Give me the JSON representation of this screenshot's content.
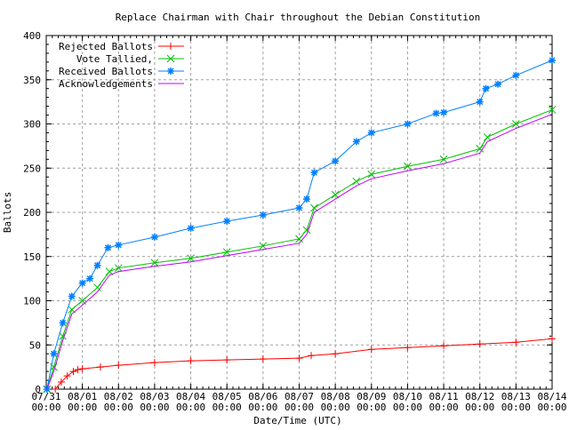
{
  "chart_data": {
    "type": "line",
    "title": "Replace Chairman with Chair throughout the Debian Constitution",
    "xlabel": "Date/Time (UTC)",
    "ylabel": "Ballots",
    "ylim": [
      0,
      400
    ],
    "yticks": [
      0,
      50,
      100,
      150,
      200,
      250,
      300,
      350,
      400
    ],
    "xlim": [
      "07/31 00:00",
      "08/14 00:00"
    ],
    "xticks": [
      "07/31",
      "08/01",
      "08/02",
      "08/03",
      "08/04",
      "08/05",
      "08/06",
      "08/07",
      "08/08",
      "08/09",
      "08/10",
      "08/11",
      "08/12",
      "08/13",
      "08/14"
    ],
    "xtick_time": "00:00",
    "grid": true,
    "legend_position": "top-left",
    "series": [
      {
        "name": "Rejected Ballots",
        "color": "#ff0000",
        "marker": "plus",
        "points": [
          [
            "07/31 06:00",
            0
          ],
          [
            "07/31 10:00",
            8
          ],
          [
            "07/31 14:00",
            15
          ],
          [
            "07/31 18:00",
            20
          ],
          [
            "07/31 21:00",
            22
          ],
          [
            "08/01 00:00",
            23
          ],
          [
            "08/01 12:00",
            25
          ],
          [
            "08/02 00:00",
            27
          ],
          [
            "08/03 00:00",
            30
          ],
          [
            "08/04 00:00",
            32
          ],
          [
            "08/05 00:00",
            33
          ],
          [
            "08/06 00:00",
            34
          ],
          [
            "08/07 00:00",
            35
          ],
          [
            "08/07 08:00",
            38
          ],
          [
            "08/08 00:00",
            40
          ],
          [
            "08/09 00:00",
            45
          ],
          [
            "08/10 00:00",
            47
          ],
          [
            "08/11 00:00",
            49
          ],
          [
            "08/12 00:00",
            51
          ],
          [
            "08/13 00:00",
            53
          ],
          [
            "08/14 00:00",
            57
          ]
        ]
      },
      {
        "name": "Vote Tallied,",
        "color": "#00c000",
        "marker": "cross",
        "points": [
          [
            "07/31 00:30",
            0
          ],
          [
            "07/31 05:00",
            25
          ],
          [
            "07/31 11:00",
            60
          ],
          [
            "07/31 17:00",
            90
          ],
          [
            "08/01 00:00",
            100
          ],
          [
            "08/01 10:00",
            115
          ],
          [
            "08/01 18:00",
            133
          ],
          [
            "08/02 00:00",
            137
          ],
          [
            "08/03 00:00",
            143
          ],
          [
            "08/04 00:00",
            148
          ],
          [
            "08/05 00:00",
            155
          ],
          [
            "08/06 00:00",
            162
          ],
          [
            "08/07 00:00",
            170
          ],
          [
            "08/07 05:00",
            180
          ],
          [
            "08/07 10:00",
            205
          ],
          [
            "08/08 00:00",
            220
          ],
          [
            "08/08 14:00",
            235
          ],
          [
            "08/09 00:00",
            243
          ],
          [
            "08/10 00:00",
            252
          ],
          [
            "08/11 00:00",
            260
          ],
          [
            "08/12 00:00",
            272
          ],
          [
            "08/12 05:00",
            285
          ],
          [
            "08/13 00:00",
            300
          ],
          [
            "08/14 00:00",
            316
          ]
        ]
      },
      {
        "name": "Received Ballots",
        "color": "#0080ff",
        "marker": "star",
        "points": [
          [
            "07/31 00:30",
            0
          ],
          [
            "07/31 05:00",
            40
          ],
          [
            "07/31 11:00",
            75
          ],
          [
            "07/31 17:00",
            105
          ],
          [
            "08/01 00:00",
            120
          ],
          [
            "08/01 05:00",
            125
          ],
          [
            "08/01 10:00",
            140
          ],
          [
            "08/01 17:00",
            160
          ],
          [
            "08/02 00:00",
            163
          ],
          [
            "08/03 00:00",
            172
          ],
          [
            "08/04 00:00",
            182
          ],
          [
            "08/05 00:00",
            190
          ],
          [
            "08/06 00:00",
            197
          ],
          [
            "08/07 00:00",
            205
          ],
          [
            "08/07 05:00",
            215
          ],
          [
            "08/07 10:00",
            245
          ],
          [
            "08/08 00:00",
            258
          ],
          [
            "08/08 14:00",
            280
          ],
          [
            "08/09 00:00",
            290
          ],
          [
            "08/10 00:00",
            300
          ],
          [
            "08/10 19:00",
            312
          ],
          [
            "08/11 00:00",
            313
          ],
          [
            "08/12 00:00",
            325
          ],
          [
            "08/12 04:00",
            340
          ],
          [
            "08/12 12:00",
            345
          ],
          [
            "08/13 00:00",
            355
          ],
          [
            "08/14 00:00",
            372
          ]
        ]
      },
      {
        "name": "Acknowledgements",
        "color": "#c000ff",
        "marker": "none",
        "points": [
          [
            "07/31 00:30",
            0
          ],
          [
            "07/31 05:00",
            20
          ],
          [
            "07/31 11:00",
            55
          ],
          [
            "07/31 17:00",
            85
          ],
          [
            "08/01 00:00",
            95
          ],
          [
            "08/01 10:00",
            110
          ],
          [
            "08/01 18:00",
            129
          ],
          [
            "08/02 00:00",
            133
          ],
          [
            "08/03 00:00",
            139
          ],
          [
            "08/04 00:00",
            144
          ],
          [
            "08/05 00:00",
            151
          ],
          [
            "08/06 00:00",
            158
          ],
          [
            "08/07 00:00",
            165
          ],
          [
            "08/07 05:00",
            175
          ],
          [
            "08/07 10:00",
            200
          ],
          [
            "08/08 00:00",
            215
          ],
          [
            "08/08 14:00",
            230
          ],
          [
            "08/09 00:00",
            238
          ],
          [
            "08/10 00:00",
            247
          ],
          [
            "08/11 00:00",
            255
          ],
          [
            "08/12 00:00",
            267
          ],
          [
            "08/12 05:00",
            280
          ],
          [
            "08/13 00:00",
            295
          ],
          [
            "08/14 00:00",
            311
          ]
        ]
      }
    ]
  }
}
